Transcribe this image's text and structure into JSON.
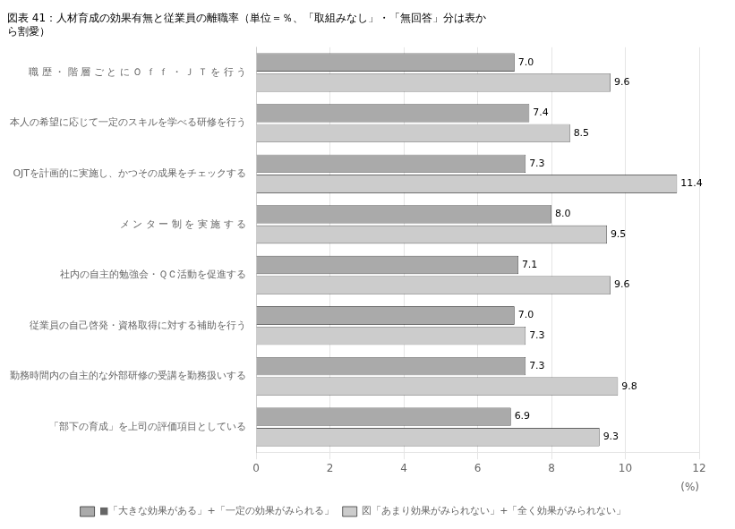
{
  "chart_data": {
    "type": "bar",
    "orientation": "horizontal",
    "title": [
      "図表 41：人材育成の効果有無と従業員の離職率（単位＝％、「取組みなし」・「無回答」分は表か",
      "ら割愛）"
    ],
    "xlabel": "(%)",
    "categories": [
      "職 歴 ・ 階 層 ご と に Ｏ ｆ ｆ ・ Ｊ Ｔ を 行 う",
      "本人の希望に応じて一定のスキルを学べる研修を行う",
      "OJTを計画的に実施し、かつその成果をチェックする",
      "メ ン タ ー 制 を 実 施 す る",
      "社内の自主的勉強会・ＱＣ活動を促進する",
      "従業員の自己啓発・資格取得に対する補助を行う",
      "勤務時間内の自主的な外部研修の受講を勤務扱いする",
      "「部下の育成」を上司の評価項目としている"
    ],
    "series": [
      {
        "name": "■「大きな効果がある」+「一定の効果がみられる」",
        "color": "#aaaaaa",
        "values": [
          7.0,
          7.4,
          7.3,
          8.0,
          7.1,
          7.0,
          7.3,
          6.9
        ],
        "value_labels": [
          "7.0",
          "7.4",
          "7.3",
          "8.0",
          "7.1",
          "7.0",
          "7.3",
          "6.9"
        ]
      },
      {
        "name": "図「あまり効果がみられない」+「全く効果がみられない」",
        "color": "#cccccc",
        "values": [
          9.6,
          8.5,
          11.4,
          9.5,
          9.6,
          7.3,
          9.8,
          9.3
        ],
        "value_labels": [
          "9.6",
          "8.5",
          "11.4",
          "9.5",
          "9.6",
          "7.3",
          "9.8",
          "9.3"
        ]
      }
    ],
    "xlim": [
      0,
      12
    ],
    "xticks": [
      0,
      2,
      4,
      6,
      8,
      10,
      12
    ],
    "grid": true,
    "legend": "bottom",
    "data_labels": true
  }
}
